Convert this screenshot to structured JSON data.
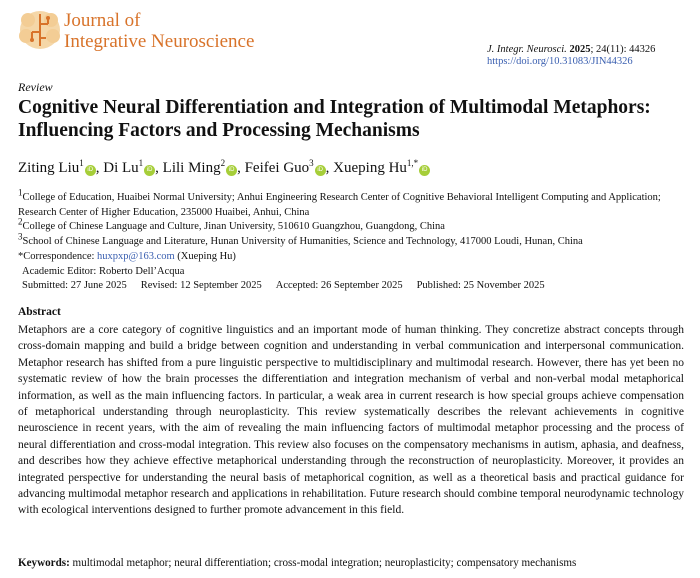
{
  "journal": {
    "name_line1": "Journal of",
    "name_line2": "Integrative Neuroscience",
    "brand_color": "#d8732a",
    "citation_journal": "J. Integr. Neurosci.",
    "citation_year": "2025",
    "citation_rest": "; 24(11): 44326",
    "doi": "https://doi.org/10.31083/JIN44326"
  },
  "article": {
    "type": "Review",
    "title": "Cognitive Neural Differentiation and Integration of Multimodal Metaphors: Influencing Factors and Processing Mechanisms"
  },
  "authors": [
    {
      "name": "Ziting Liu",
      "sup": "1"
    },
    {
      "name": "Di Lu",
      "sup": "1"
    },
    {
      "name": "Lili Ming",
      "sup": "2"
    },
    {
      "name": "Feifei Guo",
      "sup": "3"
    },
    {
      "name": "Xueping Hu",
      "sup": "1,*"
    }
  ],
  "affiliations": [
    {
      "sup": "1",
      "text": "College of Education, Huaibei Normal University; Anhui Engineering Research Center of Cognitive Behavioral Intelligent Computing and Application; Research Center of Higher Education, 235000 Huaibei, Anhui, China"
    },
    {
      "sup": "2",
      "text": "College of Chinese Language and Culture, Jinan University, 510610 Guangzhou, Guangdong, China"
    },
    {
      "sup": "3",
      "text": "School of Chinese Language and Literature, Hunan University of Humanities, Science and Technology, 417000 Loudi, Hunan, China"
    }
  ],
  "correspondence": {
    "label": "*Correspondence:",
    "email": "huxpxp@163.com",
    "name": "(Xueping Hu)"
  },
  "editor": "Academic Editor: Roberto Dell’Acqua",
  "dates": {
    "submitted": "Submitted: 27 June 2025",
    "revised": "Revised: 12 September 2025",
    "accepted": "Accepted: 26 September 2025",
    "published": "Published: 25 November 2025"
  },
  "abstract": {
    "heading": "Abstract",
    "text": "Metaphors are a core category of cognitive linguistics and an important mode of human thinking. They concretize abstract concepts through cross-domain mapping and build a bridge between cognition and understanding in verbal communication and interpersonal communication. Metaphor research has shifted from a pure linguistic perspective to multidisciplinary and multimodal research. However, there has yet been no systematic review of how the brain processes the differentiation and integration mechanism of verbal and non-verbal modal metaphorical information, as well as the main influencing factors. In particular, a weak area in current research is how special groups achieve compensation of metaphorical understanding through neuroplasticity. This review systematically describes the relevant achievements in cognitive neuroscience in recent years, with the aim of revealing the main influencing factors of multimodal metaphor processing and the process of neural differentiation and cross-modal integration. This review also focuses on the compensatory mechanisms in autism, aphasia, and deafness, and describes how they achieve effective metaphorical understanding through the reconstruction of neuroplasticity. Moreover, it provides an integrated perspective for understanding the neural basis of metaphorical cognition, as well as a theoretical basis and practical guidance for advancing multimodal metaphor research and applications in rehabilitation. Future research should combine temporal neurodynamic technology with ecological interventions designed to further promote advancement in this field."
  },
  "keywords": {
    "label": "Keywords:",
    "text": "multimodal metaphor; neural differentiation; cross-modal integration; neuroplasticity; compensatory mechanisms"
  }
}
